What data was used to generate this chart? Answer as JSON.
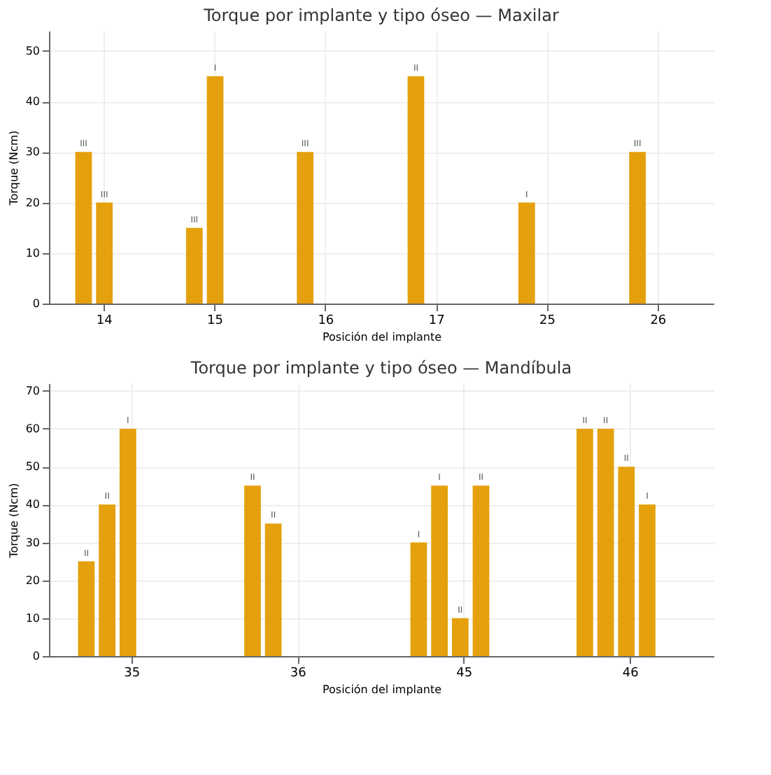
{
  "chart_data": [
    {
      "type": "bar",
      "title": "Torque por implante y tipo óseo — Maxilar",
      "xlabel": "Posición del implante",
      "ylabel": "Torque (Ncm)",
      "categories": [
        "14",
        "15",
        "16",
        "17",
        "25",
        "26"
      ],
      "ylim": [
        0,
        54
      ],
      "yticks": [
        0,
        10,
        20,
        30,
        40,
        50
      ],
      "grid": true,
      "legend": false,
      "series": [
        {
          "color": "#e5a00d",
          "values": [
            30,
            15,
            30,
            45,
            20,
            30
          ],
          "value_labels": [
            "III",
            "III",
            "III",
            "II",
            "I",
            "III"
          ]
        },
        {
          "color": "#e5a00d",
          "values": [
            20,
            45,
            null,
            null,
            null,
            null
          ],
          "value_labels": [
            "III",
            "I",
            null,
            null,
            null,
            null
          ]
        }
      ]
    },
    {
      "type": "bar",
      "title": "Torque por implante y tipo óseo — Mandíbula",
      "xlabel": "Posición del implante",
      "ylabel": "Torque (Ncm)",
      "categories": [
        "35",
        "36",
        "45",
        "46"
      ],
      "ylim": [
        0,
        72
      ],
      "yticks": [
        0,
        10,
        20,
        30,
        40,
        50,
        60,
        70
      ],
      "grid": true,
      "legend": false,
      "series": [
        {
          "color": "#e5a00d",
          "values": [
            25,
            45,
            30,
            60
          ],
          "value_labels": [
            "II",
            "II",
            "I",
            "II"
          ]
        },
        {
          "color": "#e5a00d",
          "values": [
            40,
            35,
            45,
            60
          ],
          "value_labels": [
            "II",
            "II",
            "I",
            "II"
          ]
        },
        {
          "color": "#e5a00d",
          "values": [
            60,
            null,
            10,
            50
          ],
          "value_labels": [
            "I",
            null,
            "II",
            "II"
          ]
        },
        {
          "color": "#e5a00d",
          "values": [
            null,
            null,
            45,
            40
          ],
          "value_labels": [
            null,
            null,
            "II",
            "I"
          ]
        }
      ]
    }
  ]
}
